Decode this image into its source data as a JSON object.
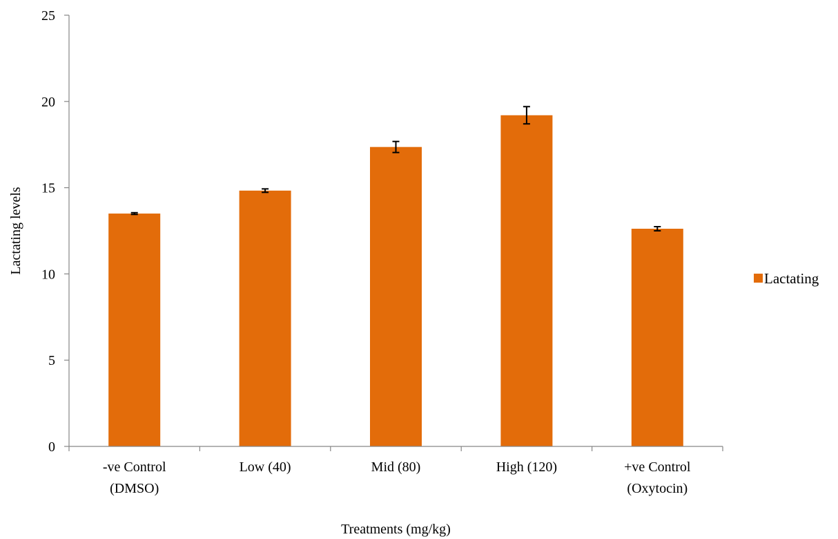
{
  "chart_data": {
    "type": "bar",
    "categories": [
      [
        "-ve Control",
        "(DMSO)"
      ],
      [
        "Low (40)"
      ],
      [
        "Mid (80)"
      ],
      [
        "High (120)"
      ],
      [
        "+ve Control",
        "(Oxytocin)"
      ]
    ],
    "series": [
      {
        "name": "Lactating",
        "values": [
          13.5,
          14.83,
          17.36,
          19.2,
          12.62
        ],
        "errors": [
          0.05,
          0.1,
          0.32,
          0.5,
          0.12
        ]
      }
    ],
    "xlabel": "Treatments (mg/kg)",
    "ylabel": "Lactating levels",
    "ylim": [
      0,
      25
    ],
    "yticks": [
      0,
      5,
      10,
      15,
      20,
      25
    ],
    "grid": false,
    "legend_position": "right",
    "colors": {
      "bar": "#E36C0A",
      "axis": "#868686",
      "error_bar": "#000000"
    }
  }
}
